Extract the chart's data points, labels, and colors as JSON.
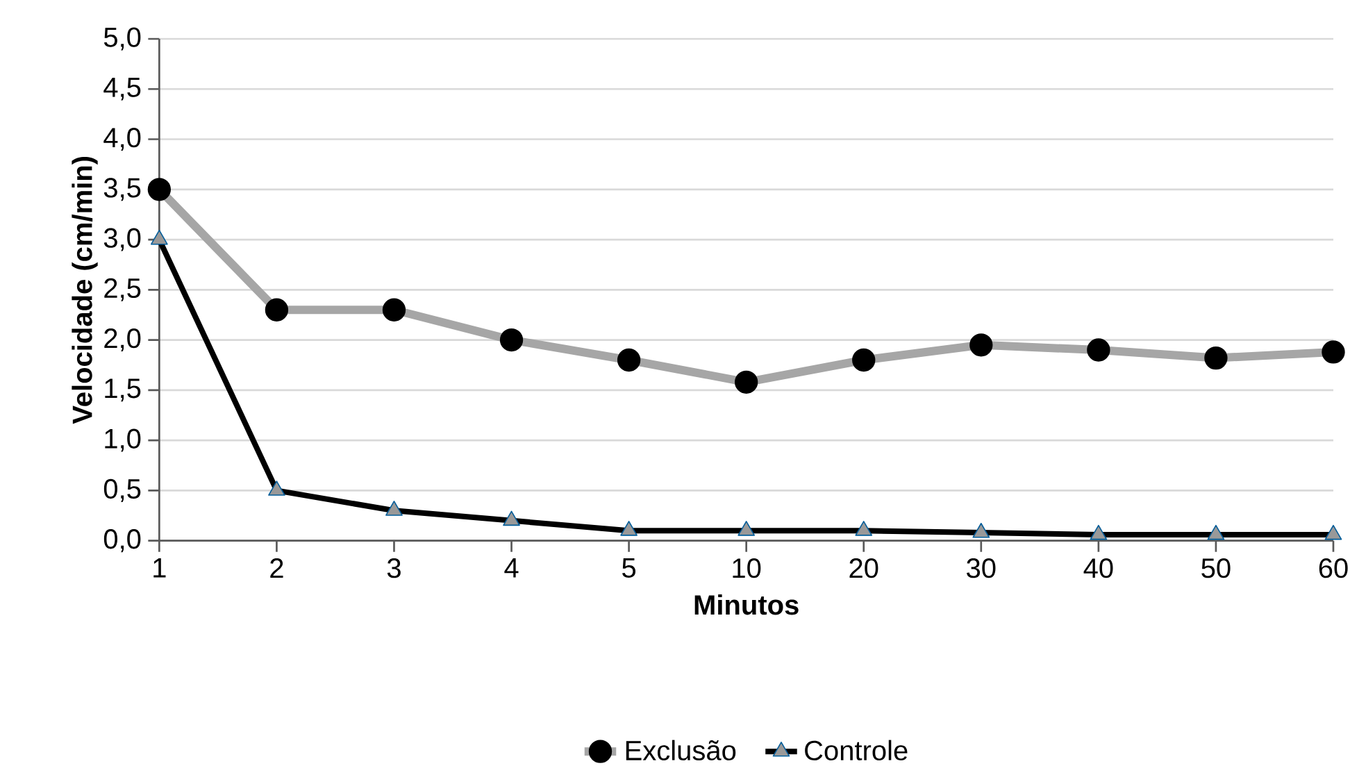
{
  "chart_data": {
    "type": "line",
    "xlabel": "Minutos",
    "ylabel": "Velocidade (cm/min)",
    "categories": [
      "1",
      "2",
      "3",
      "4",
      "5",
      "10",
      "20",
      "30",
      "40",
      "50",
      "60"
    ],
    "series": [
      {
        "name": "Exclusão",
        "color": "#a6a6a6",
        "marker": "circle",
        "values": [
          3.5,
          2.3,
          2.3,
          2.0,
          1.8,
          1.58,
          1.8,
          1.95,
          1.9,
          1.82,
          1.88
        ]
      },
      {
        "name": "Controle",
        "color": "#000000",
        "marker": "triangle",
        "values": [
          3.0,
          0.5,
          0.3,
          0.2,
          0.1,
          0.1,
          0.1,
          0.08,
          0.06,
          0.06,
          0.06
        ]
      }
    ],
    "ylim": [
      0,
      5
    ],
    "yticks": [
      {
        "value": 0,
        "label": "0,0"
      },
      {
        "value": 0.5,
        "label": "0,5"
      },
      {
        "value": 1,
        "label": "1,0"
      },
      {
        "value": 1.5,
        "label": "1,5"
      },
      {
        "value": 2,
        "label": "2,0"
      },
      {
        "value": 2.5,
        "label": "2,5"
      },
      {
        "value": 3,
        "label": "3,0"
      },
      {
        "value": 3.5,
        "label": "3,5"
      },
      {
        "value": 4,
        "label": "4,0"
      },
      {
        "value": 4.5,
        "label": "4,5"
      },
      {
        "value": 5,
        "label": "5,0"
      }
    ],
    "grid": "y",
    "legend": "bottom"
  }
}
